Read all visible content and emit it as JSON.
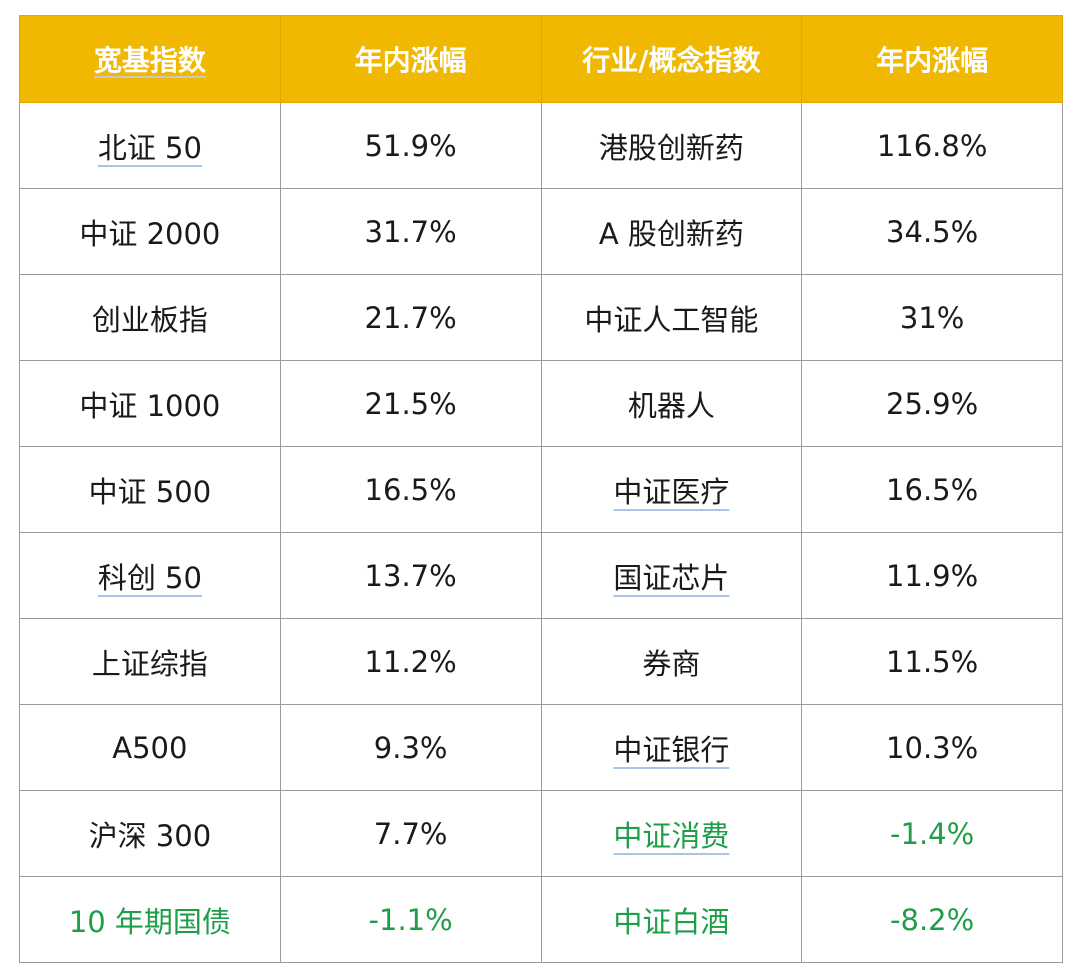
{
  "header": [
    "宽基指数",
    "年内涨幅",
    "行业/概念指数",
    "年内涨幅"
  ],
  "colors": {
    "header_bg": "#f0b800",
    "header_text": "#ffffff",
    "body_text": "#1a1a1a",
    "negative_text": "#1f9e4a",
    "grid": "#9a9a9a"
  },
  "rows": [
    {
      "broad": "北证 50",
      "broad_change": "51.9%",
      "sector": "港股创新药",
      "sector_change": "116.8%",
      "broad_neg": false,
      "sector_neg": false
    },
    {
      "broad": "中证 2000",
      "broad_change": "31.7%",
      "sector": "A 股创新药",
      "sector_change": "34.5%",
      "broad_neg": false,
      "sector_neg": false
    },
    {
      "broad": "创业板指",
      "broad_change": "21.7%",
      "sector": "中证人工智能",
      "sector_change": "31%",
      "broad_neg": false,
      "sector_neg": false
    },
    {
      "broad": "中证 1000",
      "broad_change": "21.5%",
      "sector": "机器人",
      "sector_change": "25.9%",
      "broad_neg": false,
      "sector_neg": false
    },
    {
      "broad": "中证 500",
      "broad_change": "16.5%",
      "sector": "中证医疗",
      "sector_change": "16.5%",
      "broad_neg": false,
      "sector_neg": false
    },
    {
      "broad": "科创 50",
      "broad_change": "13.7%",
      "sector": "国证芯片",
      "sector_change": "11.9%",
      "broad_neg": false,
      "sector_neg": false
    },
    {
      "broad": "上证综指",
      "broad_change": "11.2%",
      "sector": "券商",
      "sector_change": "11.5%",
      "broad_neg": false,
      "sector_neg": false
    },
    {
      "broad": "A500",
      "broad_change": "9.3%",
      "sector": "中证银行",
      "sector_change": "10.3%",
      "broad_neg": false,
      "sector_neg": false
    },
    {
      "broad": "沪深 300",
      "broad_change": "7.7%",
      "sector": "中证消费",
      "sector_change": "-1.4%",
      "broad_neg": false,
      "sector_neg": true
    },
    {
      "broad": "10 年期国债",
      "broad_change": "-1.1%",
      "sector": "中证白酒",
      "sector_change": "-8.2%",
      "broad_neg": true,
      "sector_neg": true
    }
  ]
}
